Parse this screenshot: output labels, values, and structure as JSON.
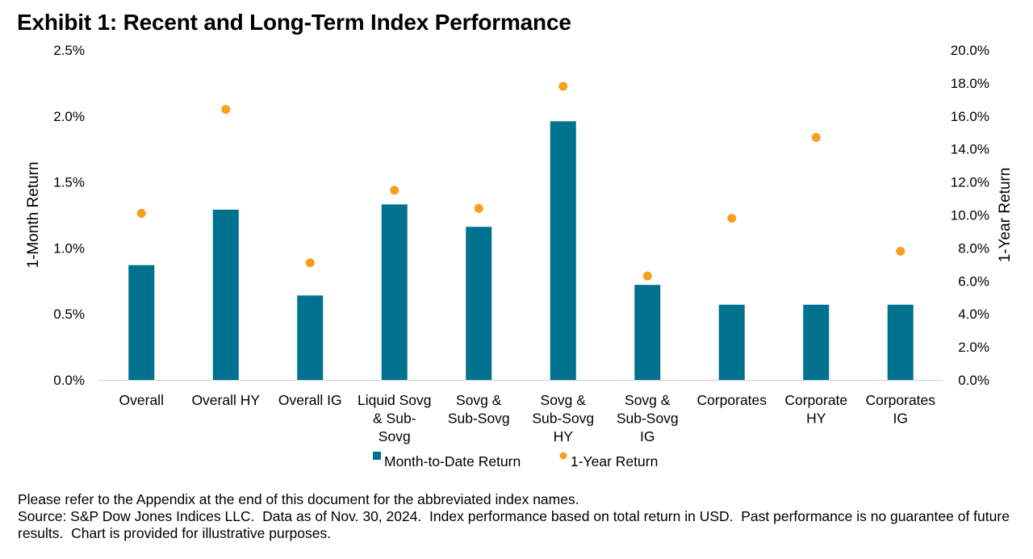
{
  "title": "Exhibit 1: Recent and Long-Term Index Performance",
  "chart_data": {
    "type": "bar",
    "categories": [
      [
        "Overall"
      ],
      [
        "Overall HY"
      ],
      [
        "Overall IG"
      ],
      [
        "Liquid Sovg",
        "& Sub-",
        "Sovg"
      ],
      [
        "Sovg &",
        "Sub-Sovg"
      ],
      [
        "Sovg &",
        "Sub-Sovg",
        "HY"
      ],
      [
        "Sovg &",
        "Sub-Sovg",
        "IG"
      ],
      [
        "Corporates"
      ],
      [
        "Corporate",
        "HY"
      ],
      [
        "Corporates",
        "IG"
      ]
    ],
    "series": [
      {
        "name": "Month-to-Date Return",
        "type": "bar",
        "axis": "left",
        "color": "#00718f",
        "values": [
          0.87,
          1.29,
          0.64,
          1.33,
          1.16,
          1.96,
          0.72,
          0.57,
          0.57,
          0.57
        ]
      },
      {
        "name": "1-Year Return",
        "type": "scatter",
        "axis": "right",
        "color": "#f7a01e",
        "values": [
          10.1,
          16.4,
          7.1,
          11.5,
          10.4,
          17.8,
          6.3,
          9.8,
          14.7,
          7.8
        ]
      }
    ],
    "y_left": {
      "label": "1-Month Return",
      "lim": [
        0,
        2.5
      ],
      "ticks": [
        "0.0%",
        "0.5%",
        "1.0%",
        "1.5%",
        "2.0%",
        "2.5%"
      ]
    },
    "y_right": {
      "label": "1-Year Return",
      "lim": [
        0,
        20
      ],
      "ticks": [
        "0.0%",
        "2.0%",
        "4.0%",
        "6.0%",
        "8.0%",
        "10.0%",
        "12.0%",
        "14.0%",
        "16.0%",
        "18.0%",
        "20.0%"
      ]
    },
    "grid": false,
    "legend_position": "bottom"
  },
  "notes": [
    "Please refer to the Appendix at the end of this document for the abbreviated index names.",
    "Source: S&P Dow Jones Indices LLC.  Data as of Nov. 30, 2024.  Index performance based on total return in USD.  Past performance is no guarantee of future results.  Chart is provided for illustrative purposes."
  ]
}
